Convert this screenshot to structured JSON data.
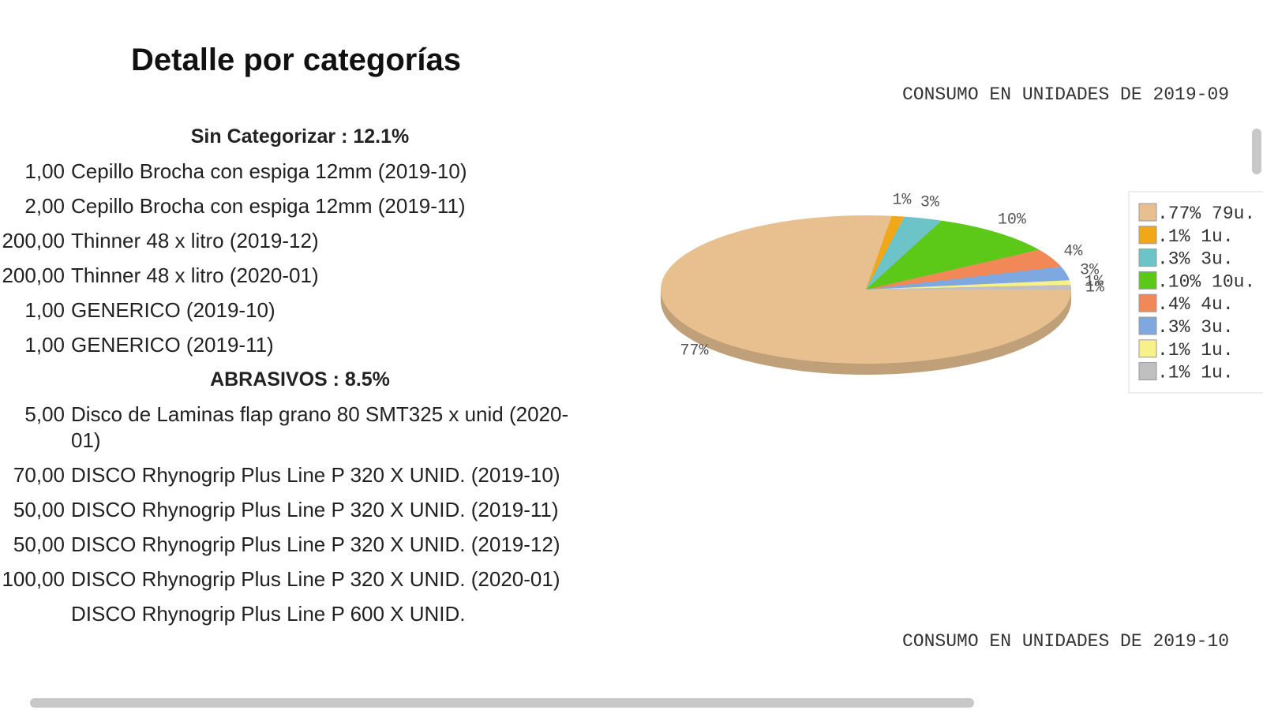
{
  "title": "Detalle por categorías",
  "sections": [
    {
      "heading": "Sin Categorizar : 12.1%",
      "items": [
        {
          "qty": "1,00",
          "name": "Cepillo Brocha con espiga 12mm (2019-10)"
        },
        {
          "qty": "2,00",
          "name": "Cepillo Brocha con espiga 12mm (2019-11)"
        },
        {
          "qty": "200,00",
          "name": "Thinner 48 x litro (2019-12)"
        },
        {
          "qty": "200,00",
          "name": "Thinner 48 x litro (2020-01)"
        },
        {
          "qty": "1,00",
          "name": "GENERICO (2019-10)"
        },
        {
          "qty": "1,00",
          "name": "GENERICO (2019-11)"
        }
      ]
    },
    {
      "heading": "ABRASIVOS : 8.5%",
      "items": [
        {
          "qty": "5,00",
          "name": "Disco de Laminas flap grano 80 SMT325 x unid (2020-01)"
        },
        {
          "qty": "70,00",
          "name": "DISCO Rhynogrip Plus Line P 320 X UNID. (2019-10)"
        },
        {
          "qty": "50,00",
          "name": "DISCO Rhynogrip Plus Line P 320 X UNID. (2019-11)"
        },
        {
          "qty": "50,00",
          "name": "DISCO Rhynogrip Plus Line P 320 X UNID. (2019-12)"
        },
        {
          "qty": "100,00",
          "name": "DISCO Rhynogrip Plus Line P 320 X UNID. (2020-01)"
        },
        {
          "name": "DISCO Rhynogrip Plus Line P 600 X UNID."
        }
      ]
    }
  ],
  "chart_data": [
    {
      "type": "pie",
      "title": "CONSUMO EN UNIDADES DE 2019-09",
      "categories": [
        ".77% 79u.",
        ".1% 1u.",
        ".3% 3u.",
        ".10% 10u.",
        ".4% 4u.",
        ".3% 3u.",
        ".1% 1u.",
        ".1% 1u."
      ],
      "values": [
        77,
        1,
        3,
        10,
        4,
        3,
        1,
        1
      ],
      "value_labels": [
        "77%",
        "1%",
        "3%",
        "10%",
        "4%",
        "3%",
        "1%",
        "1%"
      ],
      "colors": [
        "#e8c090",
        "#f0a818",
        "#6cc4c8",
        "#5cc818",
        "#f08858",
        "#80a8e0",
        "#f8f088",
        "#c0c0c0"
      ]
    },
    {
      "type": "pie",
      "title": "CONSUMO EN UNIDADES DE 2019-10"
    }
  ]
}
